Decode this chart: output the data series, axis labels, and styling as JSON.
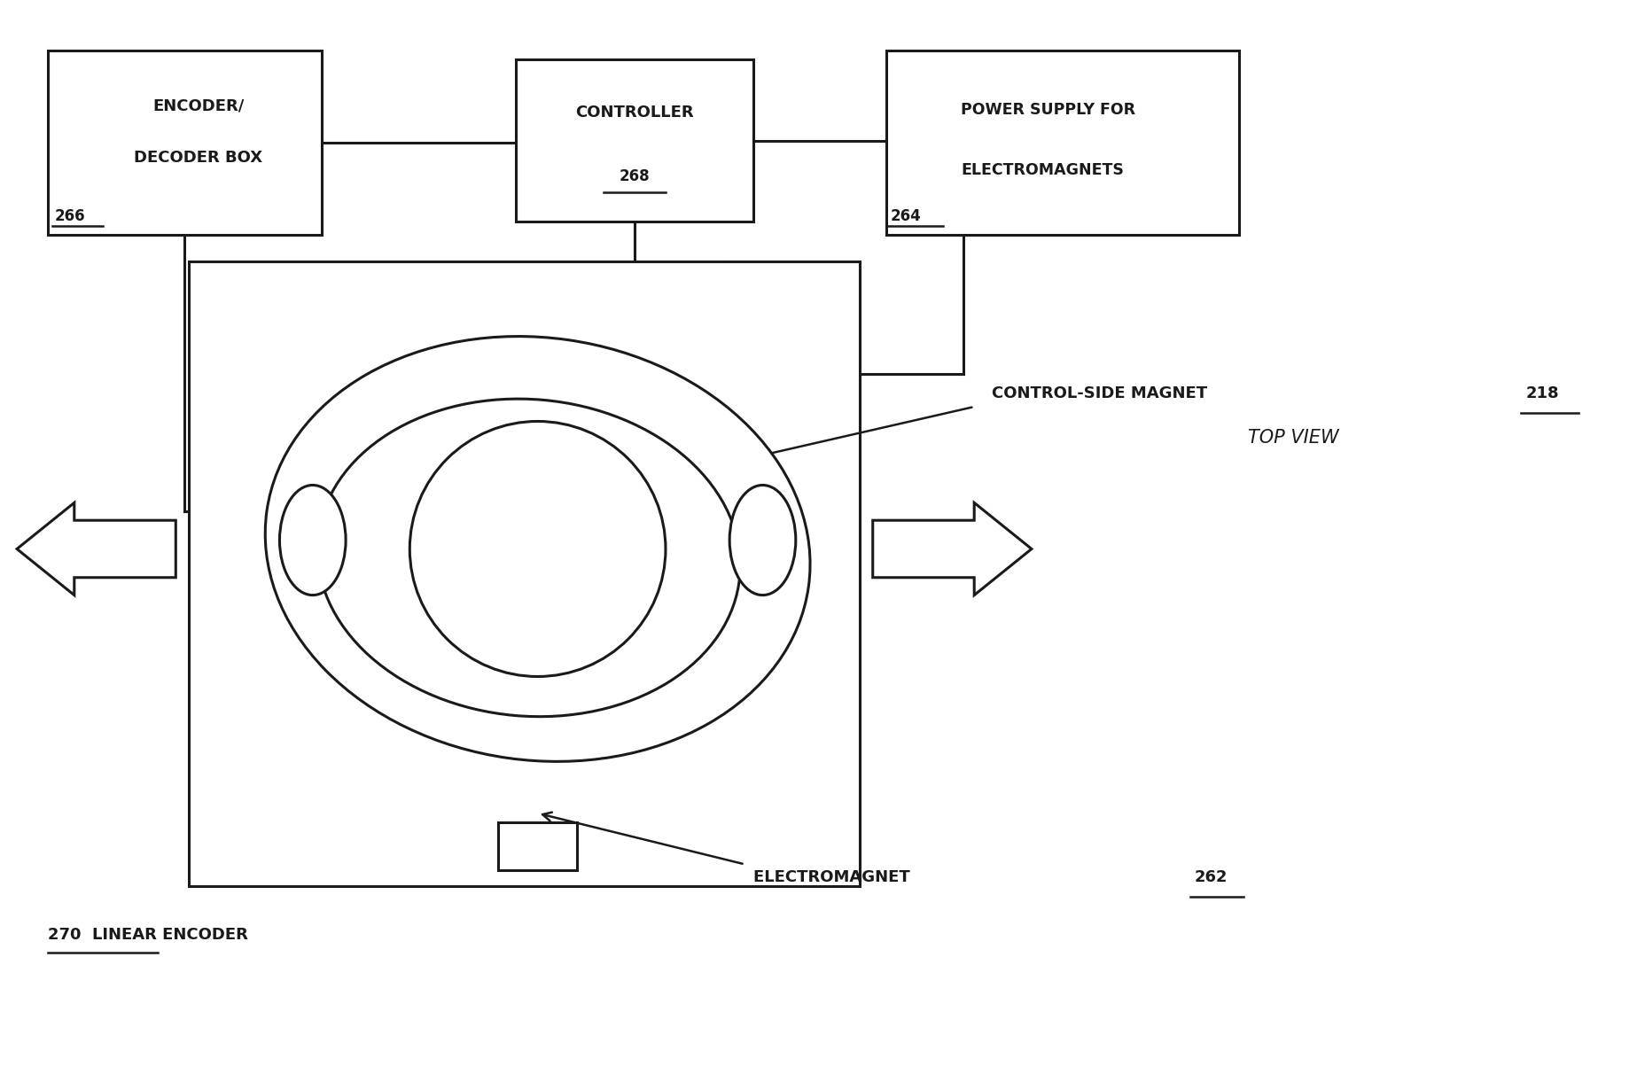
{
  "bg_color": "#ffffff",
  "line_color": "#1a1a1a",
  "label_218": "CONTROL-SIDE MAGNET  218",
  "label_262": "ELECTROMAGNET  262",
  "label_270": "270  LINEAR ENCODER",
  "top_view_text": "TOP VIEW"
}
